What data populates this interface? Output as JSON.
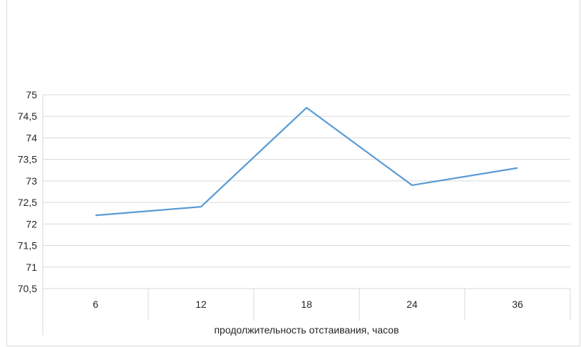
{
  "chart_data": {
    "type": "line",
    "categories": [
      "6",
      "12",
      "18",
      "24",
      "36"
    ],
    "series": [
      {
        "values": [
          72.2,
          72.4,
          74.7,
          72.9,
          73.3
        ],
        "color": "#5b9bd5"
      }
    ],
    "title": "",
    "xlabel": "продолжительность отстаивания, часов",
    "ylabel": "",
    "ylim": [
      70.5,
      75
    ],
    "yticks": [
      "75",
      "74,5",
      "74",
      "73,5",
      "73",
      "72,5",
      "72",
      "71,5",
      "71",
      "70,5"
    ],
    "grid": true,
    "gridline_color": "#d9d9d9"
  }
}
